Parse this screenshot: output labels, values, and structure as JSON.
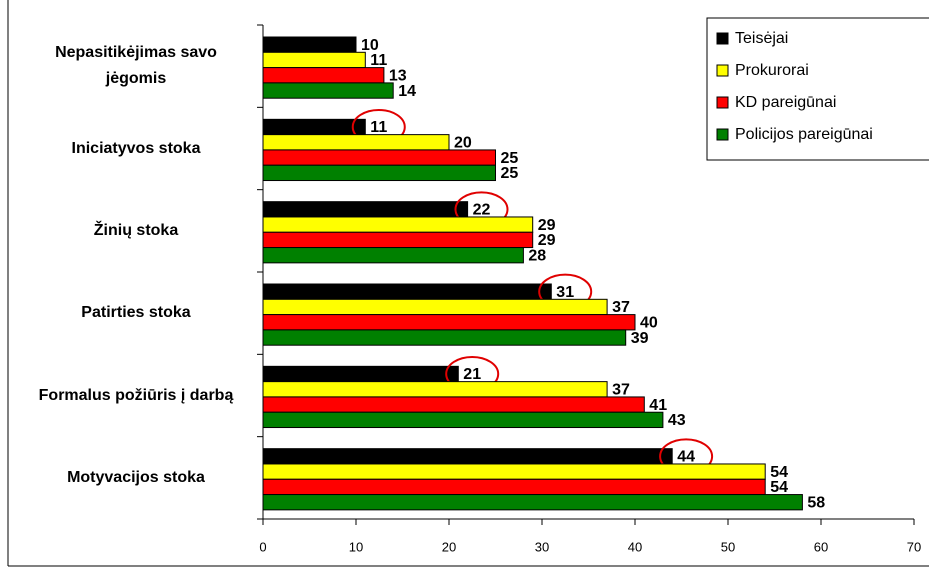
{
  "chart_data": {
    "type": "bar",
    "orientation": "horizontal",
    "categories": [
      "Nepasitikėjimas savo jėgomis",
      "Iniciatyvos stoka",
      "Žinių stoka",
      "Patirties stoka",
      "Formalus požiūris į darbą",
      "Motyvacijos stoka"
    ],
    "series": [
      {
        "name": "Teisėjai",
        "color": "#000000",
        "values": [
          10,
          11,
          22,
          31,
          21,
          44
        ]
      },
      {
        "name": "Prokurorai",
        "color": "#ffff00",
        "values": [
          11,
          20,
          29,
          37,
          37,
          54
        ]
      },
      {
        "name": "KD pareigūnai",
        "color": "#ff0000",
        "values": [
          13,
          25,
          29,
          40,
          41,
          54
        ]
      },
      {
        "name": "Policijos pareigūnai",
        "color": "#008000",
        "values": [
          14,
          25,
          28,
          39,
          43,
          58
        ]
      }
    ],
    "xlim": [
      0,
      70
    ],
    "xticks": [
      0,
      10,
      20,
      30,
      40,
      50,
      60,
      70
    ],
    "legend": "upper right"
  }
}
